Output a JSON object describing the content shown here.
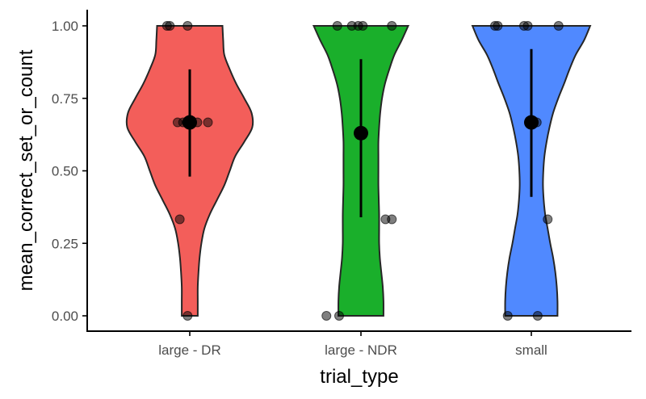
{
  "chart_data": {
    "type": "violin",
    "xlabel": "trial_type",
    "ylabel": "mean_correct_set_or_count",
    "ylim": [
      0,
      1
    ],
    "y_ticks": [
      0.0,
      0.25,
      0.5,
      0.75,
      1.0
    ],
    "y_tick_labels": [
      "0.00",
      "0.25",
      "0.50",
      "0.75",
      "1.00"
    ],
    "grid": false,
    "legend": "none",
    "categories": [
      "large - DR",
      "large - NDR",
      "small"
    ],
    "series": [
      {
        "category": "large - DR",
        "color": "#F35E5A",
        "mean": 0.667,
        "error_low": 0.48,
        "error_high": 0.85,
        "violin_profile": [
          {
            "y": 0.0,
            "hw": 0.22
          },
          {
            "y": 0.05,
            "hw": 0.22
          },
          {
            "y": 0.1,
            "hw": 0.22
          },
          {
            "y": 0.15,
            "hw": 0.24
          },
          {
            "y": 0.2,
            "hw": 0.27
          },
          {
            "y": 0.25,
            "hw": 0.32
          },
          {
            "y": 0.3,
            "hw": 0.4
          },
          {
            "y": 0.35,
            "hw": 0.55
          },
          {
            "y": 0.4,
            "hw": 0.75
          },
          {
            "y": 0.45,
            "hw": 0.95
          },
          {
            "y": 0.5,
            "hw": 1.1
          },
          {
            "y": 0.55,
            "hw": 1.25
          },
          {
            "y": 0.6,
            "hw": 1.5
          },
          {
            "y": 0.65,
            "hw": 1.72
          },
          {
            "y": 0.7,
            "hw": 1.7
          },
          {
            "y": 0.75,
            "hw": 1.5
          },
          {
            "y": 0.8,
            "hw": 1.28
          },
          {
            "y": 0.85,
            "hw": 1.1
          },
          {
            "y": 0.9,
            "hw": 0.95
          },
          {
            "y": 0.95,
            "hw": 0.92
          },
          {
            "y": 1.0,
            "hw": 0.9
          }
        ],
        "points": [
          {
            "dx": -0.12,
            "y": 0.0
          },
          {
            "dx": -0.55,
            "y": 0.333
          },
          {
            "dx": -0.67,
            "y": 0.667
          },
          {
            "dx": -0.37,
            "y": 0.667
          },
          {
            "dx": -0.17,
            "y": 0.667
          },
          {
            "dx": 0.42,
            "y": 0.667
          },
          {
            "dx": 1.0,
            "y": 0.667
          },
          {
            "dx": -1.25,
            "y": 1.0
          },
          {
            "dx": -1.1,
            "y": 1.0
          },
          {
            "dx": -0.12,
            "y": 1.0
          }
        ]
      },
      {
        "category": "large - NDR",
        "color": "#1AAF2B",
        "mean": 0.63,
        "error_low": 0.34,
        "error_high": 0.885,
        "violin_profile": [
          {
            "y": 0.0,
            "hw": 0.62
          },
          {
            "y": 0.05,
            "hw": 0.62
          },
          {
            "y": 0.1,
            "hw": 0.6
          },
          {
            "y": 0.15,
            "hw": 0.56
          },
          {
            "y": 0.2,
            "hw": 0.52
          },
          {
            "y": 0.25,
            "hw": 0.5
          },
          {
            "y": 0.3,
            "hw": 0.5
          },
          {
            "y": 0.35,
            "hw": 0.5
          },
          {
            "y": 0.4,
            "hw": 0.49
          },
          {
            "y": 0.45,
            "hw": 0.48
          },
          {
            "y": 0.5,
            "hw": 0.48
          },
          {
            "y": 0.55,
            "hw": 0.48
          },
          {
            "y": 0.6,
            "hw": 0.48
          },
          {
            "y": 0.65,
            "hw": 0.5
          },
          {
            "y": 0.7,
            "hw": 0.53
          },
          {
            "y": 0.75,
            "hw": 0.58
          },
          {
            "y": 0.8,
            "hw": 0.66
          },
          {
            "y": 0.85,
            "hw": 0.78
          },
          {
            "y": 0.9,
            "hw": 0.92
          },
          {
            "y": 0.95,
            "hw": 1.12
          },
          {
            "y": 1.0,
            "hw": 1.3
          }
        ],
        "points": [
          {
            "dx": -1.9,
            "y": 0.0
          },
          {
            "dx": -1.2,
            "y": 0.0
          },
          {
            "dx": 1.35,
            "y": 0.333
          },
          {
            "dx": 1.7,
            "y": 0.333
          },
          {
            "dx": -1.3,
            "y": 1.0
          },
          {
            "dx": -0.5,
            "y": 1.0
          },
          {
            "dx": -0.15,
            "y": 1.0
          },
          {
            "dx": 0.1,
            "y": 1.0
          },
          {
            "dx": 1.7,
            "y": 1.0
          }
        ]
      },
      {
        "category": "small",
        "color": "#5089FF",
        "mean": 0.667,
        "error_low": 0.41,
        "error_high": 0.92,
        "violin_profile": [
          {
            "y": 0.0,
            "hw": 0.72
          },
          {
            "y": 0.05,
            "hw": 0.72
          },
          {
            "y": 0.1,
            "hw": 0.7
          },
          {
            "y": 0.15,
            "hw": 0.66
          },
          {
            "y": 0.2,
            "hw": 0.6
          },
          {
            "y": 0.25,
            "hw": 0.52
          },
          {
            "y": 0.3,
            "hw": 0.45
          },
          {
            "y": 0.35,
            "hw": 0.38
          },
          {
            "y": 0.4,
            "hw": 0.34
          },
          {
            "y": 0.45,
            "hw": 0.32
          },
          {
            "y": 0.5,
            "hw": 0.33
          },
          {
            "y": 0.55,
            "hw": 0.36
          },
          {
            "y": 0.6,
            "hw": 0.42
          },
          {
            "y": 0.65,
            "hw": 0.5
          },
          {
            "y": 0.7,
            "hw": 0.6
          },
          {
            "y": 0.75,
            "hw": 0.74
          },
          {
            "y": 0.8,
            "hw": 0.9
          },
          {
            "y": 0.85,
            "hw": 1.05
          },
          {
            "y": 0.9,
            "hw": 1.22
          },
          {
            "y": 0.95,
            "hw": 1.45
          },
          {
            "y": 1.0,
            "hw": 1.62
          }
        ],
        "points": [
          {
            "dx": -1.3,
            "y": 0.0
          },
          {
            "dx": 0.35,
            "y": 0.0
          },
          {
            "dx": 0.9,
            "y": 0.333
          },
          {
            "dx": 0.3,
            "y": 0.667
          },
          {
            "dx": -2.0,
            "y": 1.0
          },
          {
            "dx": -1.85,
            "y": 1.0
          },
          {
            "dx": -0.4,
            "y": 1.0
          },
          {
            "dx": -0.2,
            "y": 1.0
          },
          {
            "dx": 1.5,
            "y": 1.0
          }
        ]
      }
    ]
  }
}
